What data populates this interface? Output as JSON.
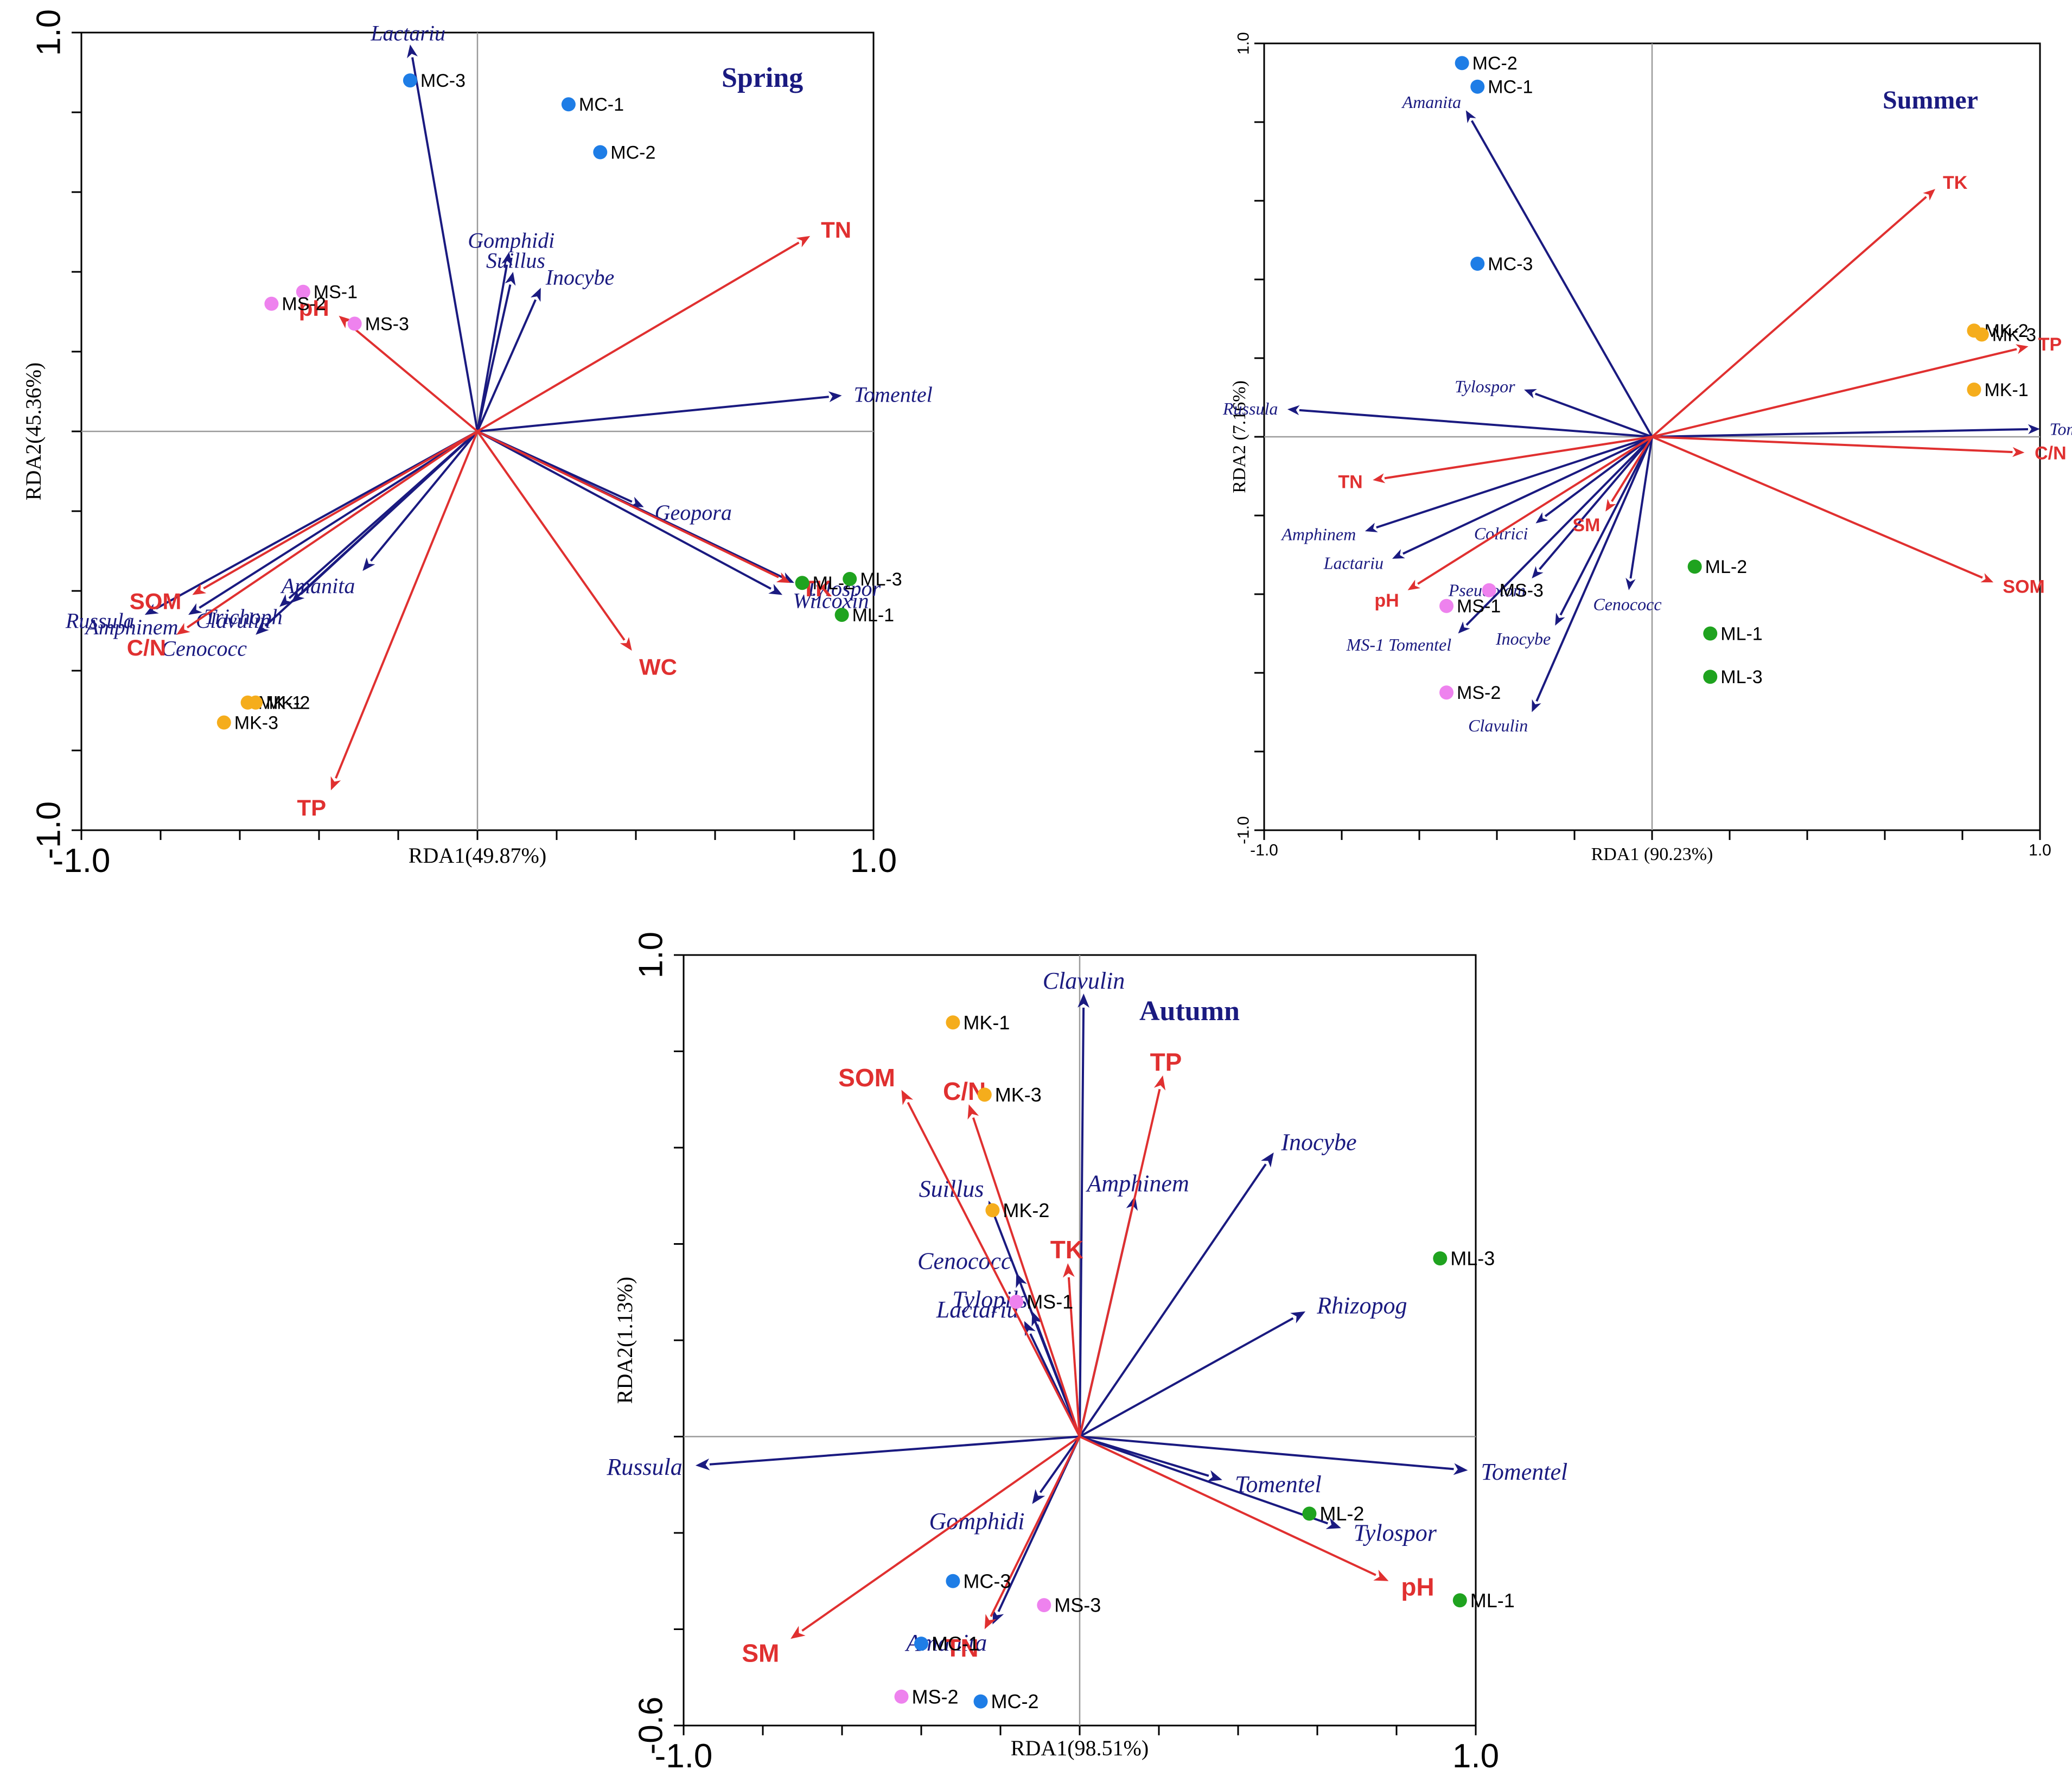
{
  "colors": {
    "species": "#1a1a80",
    "env": "#e03030",
    "title": "#1a1a80",
    "groups": {
      "MC": "#1e7de6",
      "MS": "#ee82ee",
      "MK": "#f5ad1c",
      "ML": "#1fa31f"
    }
  },
  "chart_data": [
    {
      "type": "scatter",
      "title": "Spring",
      "xlabel": "RDA1(49.87%)",
      "ylabel": "RDA2(45.36%)",
      "xlim": [
        -1.0,
        1.0
      ],
      "ylim": [
        -1.0,
        1.0
      ],
      "xtick_labels": [
        "-1.0",
        "1.0"
      ],
      "ytick_labels": [
        "-1.0",
        "1.0"
      ],
      "species_vectors": [
        {
          "name": "Lactariu",
          "x": -0.17,
          "y": 0.97
        },
        {
          "name": "Gomphidi",
          "x": 0.08,
          "y": 0.45
        },
        {
          "name": "Suillus",
          "x": 0.09,
          "y": 0.4
        },
        {
          "name": "Inocybe",
          "x": 0.16,
          "y": 0.36
        },
        {
          "name": "Tomentel",
          "x": 0.92,
          "y": 0.09
        },
        {
          "name": "Geopora",
          "x": 0.42,
          "y": -0.19
        },
        {
          "name": "Tylospor",
          "x": 0.8,
          "y": -0.38
        },
        {
          "name": "Wilcoxin",
          "x": 0.77,
          "y": -0.41
        },
        {
          "name": "Amanita",
          "x": -0.29,
          "y": -0.35
        },
        {
          "name": "Trichoph",
          "x": -0.47,
          "y": -0.43
        },
        {
          "name": "Cenococc",
          "x": -0.56,
          "y": -0.51
        },
        {
          "name": "Clavulin",
          "x": -0.5,
          "y": -0.44
        },
        {
          "name": "Amphinem",
          "x": -0.73,
          "y": -0.46
        },
        {
          "name": "Russula",
          "x": -0.84,
          "y": -0.46
        }
      ],
      "env_vectors": [
        {
          "name": "TN",
          "x": 0.84,
          "y": 0.49
        },
        {
          "name": "pH",
          "x": -0.35,
          "y": 0.29
        },
        {
          "name": "WC",
          "x": 0.39,
          "y": -0.55
        },
        {
          "name": "TK",
          "x": 0.79,
          "y": -0.38
        },
        {
          "name": "TP",
          "x": -0.37,
          "y": -0.9
        },
        {
          "name": "SOM",
          "x": -0.72,
          "y": -0.41
        },
        {
          "name": "C/N",
          "x": -0.76,
          "y": -0.51
        }
      ],
      "sites": [
        {
          "name": "MC-1",
          "group": "MC",
          "x": 0.23,
          "y": 0.82
        },
        {
          "name": "MC-2",
          "group": "MC",
          "x": 0.31,
          "y": 0.7
        },
        {
          "name": "MC-3",
          "group": "MC",
          "x": -0.17,
          "y": 0.88
        },
        {
          "name": "MS-1",
          "group": "MS",
          "x": -0.44,
          "y": 0.35
        },
        {
          "name": "MS-2",
          "group": "MS",
          "x": -0.52,
          "y": 0.32
        },
        {
          "name": "MS-3",
          "group": "MS",
          "x": -0.31,
          "y": 0.27
        },
        {
          "name": "ML-1",
          "group": "ML",
          "x": 0.92,
          "y": -0.46
        },
        {
          "name": "ML-2",
          "group": "ML",
          "x": 0.82,
          "y": -0.38
        },
        {
          "name": "ML-3",
          "group": "ML",
          "x": 0.94,
          "y": -0.37
        },
        {
          "name": "MK-1",
          "group": "MK",
          "x": -0.58,
          "y": -0.68
        },
        {
          "name": "MK-2",
          "group": "MK",
          "x": -0.56,
          "y": -0.68
        },
        {
          "name": "MK-3",
          "group": "MK",
          "x": -0.64,
          "y": -0.73
        }
      ]
    },
    {
      "type": "scatter",
      "title": "Summer",
      "xlabel": "RDA1 (90.23%)",
      "ylabel": "RDA2 (7.16%)",
      "xlim": [
        -1.0,
        1.0
      ],
      "ylim": [
        -1.0,
        1.0
      ],
      "xtick_labels": [
        "-1.0",
        "1.0"
      ],
      "ytick_labels": [
        "-1.0",
        "1.0"
      ],
      "species_vectors": [
        {
          "name": "Amanita",
          "x": -0.48,
          "y": 0.83
        },
        {
          "name": "Tylospor",
          "x": -0.33,
          "y": 0.12
        },
        {
          "name": "Russula",
          "x": -0.94,
          "y": 0.07
        },
        {
          "name": "Tomentel",
          "x": 1.0,
          "y": 0.02
        },
        {
          "name": "Amphinem",
          "x": -0.74,
          "y": -0.24
        },
        {
          "name": "Lactariu",
          "x": -0.67,
          "y": -0.31
        },
        {
          "name": "Coltrici",
          "x": -0.3,
          "y": -0.22
        },
        {
          "name": "Pseudotom",
          "x": -0.31,
          "y": -0.36
        },
        {
          "name": "MS-1 Tomentel",
          "x": -0.5,
          "y": -0.5
        },
        {
          "name": "Inocybe",
          "x": -0.25,
          "y": -0.48
        },
        {
          "name": "Cenococc",
          "x": -0.06,
          "y": -0.39
        },
        {
          "name": "Clavulin",
          "x": -0.31,
          "y": -0.7
        }
      ],
      "env_vectors": [
        {
          "name": "TK",
          "x": 0.73,
          "y": 0.63
        },
        {
          "name": "TP",
          "x": 0.97,
          "y": 0.23
        },
        {
          "name": "C/N",
          "x": 0.96,
          "y": -0.04
        },
        {
          "name": "SOM",
          "x": 0.88,
          "y": -0.37
        },
        {
          "name": "TN",
          "x": -0.72,
          "y": -0.11
        },
        {
          "name": "SM",
          "x": -0.12,
          "y": -0.19
        },
        {
          "name": "pH",
          "x": -0.63,
          "y": -0.39
        }
      ],
      "sites": [
        {
          "name": "MC-2",
          "group": "MC",
          "x": -0.49,
          "y": 0.95
        },
        {
          "name": "MC-1",
          "group": "MC",
          "x": -0.45,
          "y": 0.89
        },
        {
          "name": "MC-3",
          "group": "MC",
          "x": -0.45,
          "y": 0.44
        },
        {
          "name": "MK-2",
          "group": "MK",
          "x": 0.83,
          "y": 0.27
        },
        {
          "name": "MK-3",
          "group": "MK",
          "x": 0.85,
          "y": 0.26
        },
        {
          "name": "MK-1",
          "group": "MK",
          "x": 0.83,
          "y": 0.12
        },
        {
          "name": "ML-2",
          "group": "ML",
          "x": 0.11,
          "y": -0.33
        },
        {
          "name": "ML-1",
          "group": "ML",
          "x": 0.15,
          "y": -0.5
        },
        {
          "name": "ML-3",
          "group": "ML",
          "x": 0.15,
          "y": -0.61
        },
        {
          "name": "MS-1",
          "group": "MS",
          "x": -0.53,
          "y": -0.43
        },
        {
          "name": "MS-3",
          "group": "MS",
          "x": -0.42,
          "y": -0.39
        },
        {
          "name": "MS-2",
          "group": "MS",
          "x": -0.53,
          "y": -0.65
        }
      ]
    },
    {
      "type": "scatter",
      "title": "Autumn",
      "xlabel": "RDA1(98.51%)",
      "ylabel": "RDA2(1.13%)",
      "xlim": [
        -1.0,
        1.0
      ],
      "ylim": [
        -0.6,
        1.0
      ],
      "xtick_labels": [
        "-1.0",
        "1.0"
      ],
      "ytick_labels": [
        "-0.6",
        "1.0"
      ],
      "species_vectors": [
        {
          "name": "Clavulin",
          "x": 0.01,
          "y": 0.92
        },
        {
          "name": "Suillus",
          "x": -0.23,
          "y": 0.49
        },
        {
          "name": "Inocybe",
          "x": 0.49,
          "y": 0.59
        },
        {
          "name": "Amphinem",
          "x": 0.14,
          "y": 0.5
        },
        {
          "name": "Rhizopog",
          "x": 0.57,
          "y": 0.26
        },
        {
          "name": "Cenococc",
          "x": -0.16,
          "y": 0.34
        },
        {
          "name": "Tylopils",
          "x": -0.12,
          "y": 0.26
        },
        {
          "name": "Lactariu",
          "x": -0.14,
          "y": 0.24
        },
        {
          "name": "Russula",
          "x": -0.97,
          "y": -0.06
        },
        {
          "name": "Gomphidi",
          "x": -0.12,
          "y": -0.14
        },
        {
          "name": "Amanita",
          "x": -0.22,
          "y": -0.39
        },
        {
          "name": "Tomentel",
          "x": 0.36,
          "y": -0.09
        },
        {
          "name": "Tylospor",
          "x": 0.66,
          "y": -0.19
        },
        {
          "name": "Tomentel",
          "x": 0.98,
          "y": -0.07
        }
      ],
      "env_vectors": [
        {
          "name": "SOM",
          "x": -0.45,
          "y": 0.72
        },
        {
          "name": "C/N",
          "x": -0.28,
          "y": 0.69
        },
        {
          "name": "TP",
          "x": 0.21,
          "y": 0.75
        },
        {
          "name": "TK",
          "x": -0.03,
          "y": 0.36
        },
        {
          "name": "pH",
          "x": 0.78,
          "y": -0.3
        },
        {
          "name": "TN",
          "x": -0.24,
          "y": -0.4
        },
        {
          "name": "SM",
          "x": -0.73,
          "y": -0.42
        }
      ],
      "sites": [
        {
          "name": "MK-1",
          "group": "MK",
          "x": -0.32,
          "y": 0.86
        },
        {
          "name": "MK-3",
          "group": "MK",
          "x": -0.24,
          "y": 0.71
        },
        {
          "name": "MK-2",
          "group": "MK",
          "x": -0.22,
          "y": 0.47
        },
        {
          "name": "MS-1",
          "group": "MS",
          "x": -0.16,
          "y": 0.28
        },
        {
          "name": "ML-3",
          "group": "ML",
          "x": 0.91,
          "y": 0.37
        },
        {
          "name": "ML-2",
          "group": "ML",
          "x": 0.58,
          "y": -0.16
        },
        {
          "name": "ML-1",
          "group": "ML",
          "x": 0.96,
          "y": -0.34
        },
        {
          "name": "MS-3",
          "group": "MS",
          "x": -0.09,
          "y": -0.35
        },
        {
          "name": "MC-3",
          "group": "MC",
          "x": -0.32,
          "y": -0.3
        },
        {
          "name": "MC-1",
          "group": "MC",
          "x": -0.4,
          "y": -0.43
        },
        {
          "name": "MS-2",
          "group": "MS",
          "x": -0.45,
          "y": -0.54
        },
        {
          "name": "MC-2",
          "group": "MC",
          "x": -0.25,
          "y": -0.55
        }
      ]
    }
  ]
}
